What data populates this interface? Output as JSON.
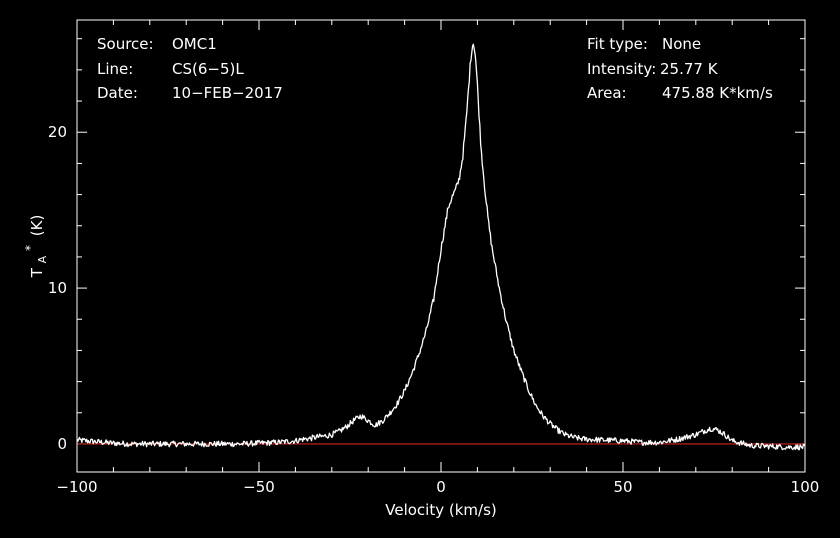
{
  "chart_data": {
    "type": "line",
    "title": "",
    "xlabel": "Velocity (km/s)",
    "ylabel": {
      "main": "T",
      "sub": "A",
      "sup": "*",
      "unit": "(K)"
    },
    "xlim": [
      -100,
      100
    ],
    "ylim": [
      -1.8,
      27.2
    ],
    "x_ticks": [
      -100,
      -50,
      0,
      50,
      100
    ],
    "x_tick_labels": [
      "−100",
      "−50",
      "0",
      "50",
      "100"
    ],
    "x_minor_step": 10,
    "y_ticks": [
      0,
      10,
      20
    ],
    "y_tick_labels": [
      "0",
      "10",
      "20"
    ],
    "y_minor_step": 2,
    "grid": false,
    "legend": "none",
    "info_left": [
      {
        "label": "Source:",
        "value": "OMC1"
      },
      {
        "label": "Line:",
        "value": "CS(6−5)L"
      },
      {
        "label": "Date:",
        "value": "10−FEB−2017"
      }
    ],
    "info_right": [
      {
        "label": "Fit type:",
        "value": "None"
      },
      {
        "label": "Intensity:",
        "value": "25.77 K"
      },
      {
        "label": "Area:",
        "value": "475.88 K*km/s"
      }
    ],
    "baseline": {
      "y": 0,
      "color": "#cc2222"
    },
    "series": [
      {
        "color": "#ffffff",
        "x": [
          -100,
          -95,
          -90,
          -85,
          -80,
          -75,
          -70,
          -65,
          -60,
          -55,
          -50,
          -45,
          -40,
          -38,
          -36,
          -34,
          -32,
          -30,
          -28,
          -26,
          -24,
          -22,
          -20,
          -18,
          -16,
          -14,
          -12,
          -10,
          -8,
          -6,
          -4,
          -2,
          0,
          2,
          3,
          4,
          5,
          6,
          7,
          8,
          8.5,
          9,
          9.5,
          10,
          11,
          12,
          13,
          14,
          16,
          18,
          20,
          22,
          24,
          26,
          28,
          30,
          32,
          34,
          36,
          38,
          40,
          45,
          50,
          55,
          60,
          65,
          70,
          72,
          74,
          76,
          78,
          80,
          85,
          90,
          95,
          100
        ],
        "y": [
          0.25,
          0.15,
          0.05,
          0.0,
          0.0,
          0.0,
          0.0,
          0.0,
          0.0,
          0.0,
          0.05,
          0.1,
          0.2,
          0.3,
          0.35,
          0.45,
          0.5,
          0.6,
          0.8,
          1.1,
          1.5,
          1.8,
          1.5,
          1.2,
          1.5,
          2.0,
          2.6,
          3.4,
          4.5,
          5.8,
          7.3,
          9.3,
          12.5,
          15.2,
          15.8,
          16.3,
          17.0,
          18.5,
          21.0,
          24.2,
          25.5,
          25.77,
          24.8,
          23.0,
          19.0,
          16.5,
          14.3,
          12.6,
          10.0,
          7.8,
          6.0,
          4.7,
          3.5,
          2.5,
          1.8,
          1.3,
          0.9,
          0.6,
          0.45,
          0.35,
          0.3,
          0.25,
          0.2,
          0.1,
          0.1,
          0.3,
          0.6,
          0.8,
          1.0,
          0.9,
          0.6,
          0.2,
          -0.1,
          -0.15,
          -0.2,
          -0.2
        ],
        "noise": 0.18
      }
    ]
  }
}
